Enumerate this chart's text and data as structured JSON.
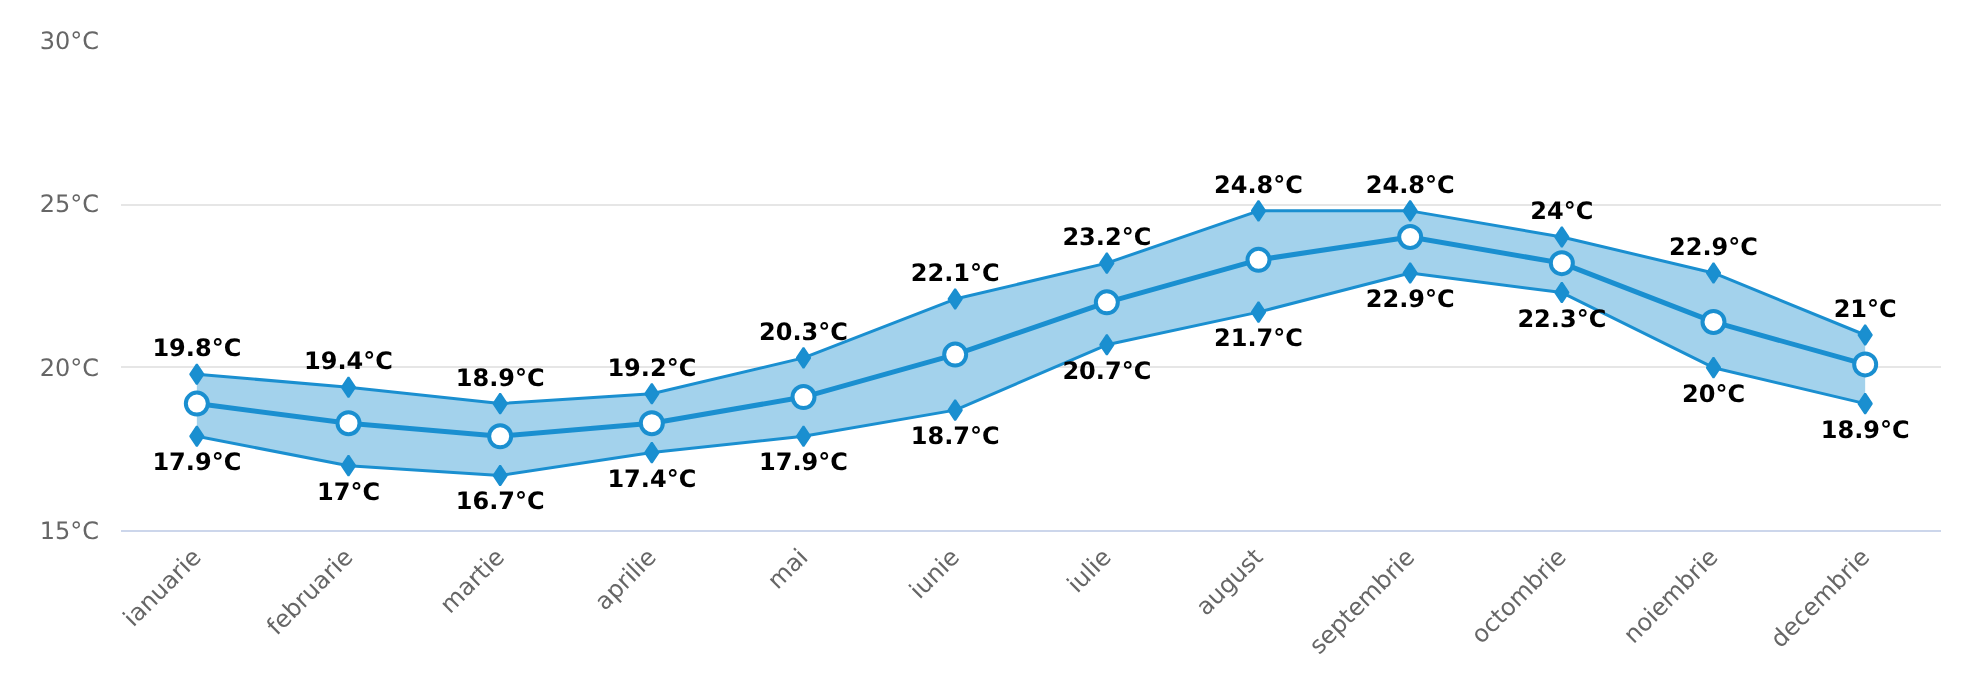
{
  "chart_data": {
    "type": "line",
    "categories": [
      "ianuarie",
      "februarie",
      "martie",
      "aprilie",
      "mai",
      "iunie",
      "iulie",
      "august",
      "septembrie",
      "octombrie",
      "noiembrie",
      "decembrie"
    ],
    "series": [
      {
        "color": "#1a8fd0",
        "values": [
          18.9,
          18.3,
          17.9,
          18.3,
          19.1,
          20.4,
          22.0,
          23.3,
          24.0,
          23.2,
          21.4,
          20.1
        ],
        "lower": [
          17.9,
          17,
          16.7,
          17.4,
          17.9,
          18.7,
          20.7,
          21.7,
          22.9,
          22.3,
          20,
          18.9
        ],
        "upper": [
          19.8,
          19.4,
          18.9,
          19.2,
          20.3,
          22.1,
          23.2,
          24.8,
          24.8,
          24,
          22.9,
          21
        ]
      },
      {
        "color": "#1a8fd0",
        "marker": "diamond",
        "values": [
          19.8,
          19.4,
          18.9,
          19.2,
          20.3,
          22.1,
          23.2,
          24.8,
          24.8,
          24,
          22.9,
          21
        ],
        "value_labels": [
          "19.8°C",
          "19.4°C",
          "18.9°C",
          "19.2°C",
          "20.3°C",
          "22.1°C",
          "23.2°C",
          "24.8°C",
          "24.8°C",
          "24°C",
          "22.9°C",
          "21°C"
        ]
      },
      {
        "color": "#1a8fd0",
        "marker": "diamond",
        "values": [
          17.9,
          17,
          16.7,
          17.4,
          17.9,
          18.7,
          20.7,
          21.7,
          22.9,
          22.3,
          20,
          18.9
        ],
        "value_labels": [
          "17.9°C",
          "17°C",
          "16.7°C",
          "17.4°C",
          "17.9°C",
          "18.7°C",
          "20.7°C",
          "21.7°C",
          "22.9°C",
          "22.3°C",
          "20°C",
          "18.9°C"
        ]
      }
    ],
    "ylim": [
      15,
      30
    ],
    "yticks": [
      {
        "value": 15,
        "label": "15°C"
      },
      {
        "value": 20,
        "label": "20°C"
      },
      {
        "value": 25,
        "label": "25°C"
      },
      {
        "value": 30,
        "label": "30°C"
      }
    ],
    "grid": "y",
    "marker": "circle",
    "line_style": "solid"
  }
}
